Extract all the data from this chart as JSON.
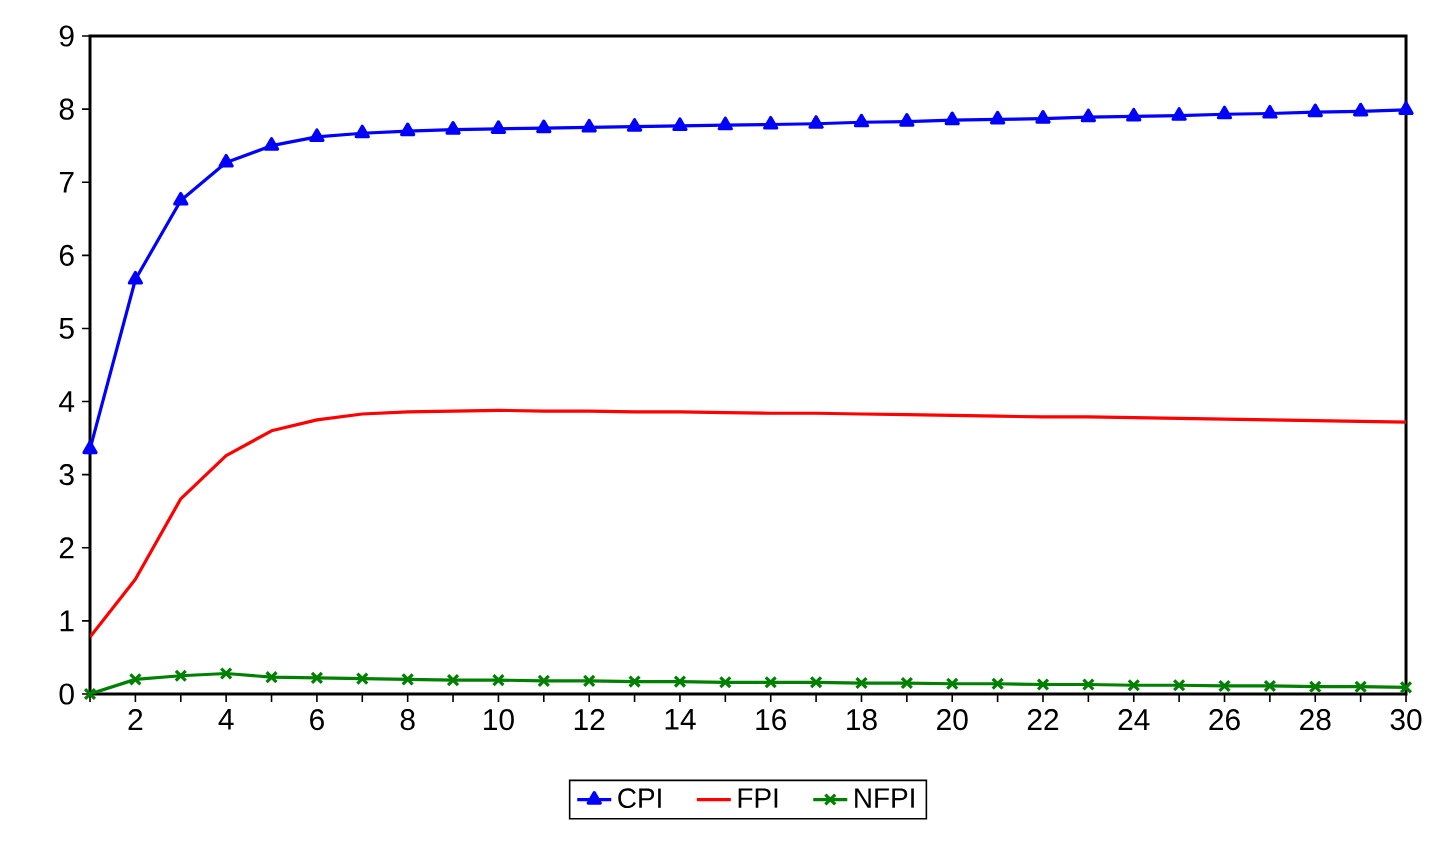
{
  "chart_data": {
    "type": "line",
    "x": [
      1,
      2,
      3,
      4,
      5,
      6,
      7,
      8,
      9,
      10,
      11,
      12,
      13,
      14,
      15,
      16,
      17,
      18,
      19,
      20,
      21,
      22,
      23,
      24,
      25,
      26,
      27,
      28,
      29,
      30
    ],
    "xlim": [
      1,
      30
    ],
    "xticks": [
      {
        "value": 1,
        "label": null
      },
      2,
      {
        "value": 3,
        "label": null
      },
      4,
      {
        "value": 5,
        "label": null
      },
      6,
      {
        "value": 7,
        "label": null
      },
      8,
      {
        "value": 9,
        "label": null
      },
      10,
      {
        "value": 11,
        "label": null
      },
      12,
      {
        "value": 13,
        "label": null
      },
      14,
      {
        "value": 15,
        "label": null
      },
      16,
      {
        "value": 17,
        "label": null
      },
      18,
      {
        "value": 19,
        "label": null
      },
      20,
      {
        "value": 21,
        "label": null
      },
      22,
      {
        "value": 23,
        "label": null
      },
      24,
      {
        "value": 25,
        "label": null
      },
      26,
      {
        "value": 27,
        "label": null
      },
      28,
      {
        "value": 29,
        "label": null
      },
      30
    ],
    "ylim": [
      0,
      9
    ],
    "yticks": [
      0,
      1,
      2,
      3,
      4,
      5,
      6,
      7,
      8,
      9
    ],
    "grid": false,
    "legend": "bottom",
    "line_style": "solid",
    "series": [
      {
        "name": "CPI",
        "color": "#0000ff",
        "marker": "triangle",
        "values": [
          3.35,
          5.67,
          6.75,
          7.27,
          7.5,
          7.62,
          7.67,
          7.7,
          7.72,
          7.73,
          7.74,
          7.75,
          7.76,
          7.77,
          7.78,
          7.79,
          7.8,
          7.82,
          7.83,
          7.85,
          7.86,
          7.87,
          7.89,
          7.9,
          7.91,
          7.93,
          7.94,
          7.96,
          7.97,
          7.99
        ]
      },
      {
        "name": "FPI",
        "color": "#ff0000",
        "marker": "none",
        "values": [
          0.78,
          1.57,
          2.67,
          3.26,
          3.6,
          3.75,
          3.83,
          3.86,
          3.87,
          3.88,
          3.87,
          3.87,
          3.86,
          3.86,
          3.85,
          3.84,
          3.84,
          3.83,
          3.82,
          3.81,
          3.8,
          3.79,
          3.79,
          3.78,
          3.77,
          3.76,
          3.75,
          3.74,
          3.73,
          3.72
        ]
      },
      {
        "name": "NFPI",
        "color": "#008000",
        "marker": "cross",
        "values": [
          0.0,
          0.2,
          0.25,
          0.28,
          0.23,
          0.22,
          0.21,
          0.2,
          0.19,
          0.19,
          0.18,
          0.18,
          0.17,
          0.17,
          0.16,
          0.16,
          0.16,
          0.15,
          0.15,
          0.14,
          0.14,
          0.13,
          0.13,
          0.12,
          0.12,
          0.11,
          0.11,
          0.1,
          0.1,
          0.09
        ]
      }
    ]
  }
}
